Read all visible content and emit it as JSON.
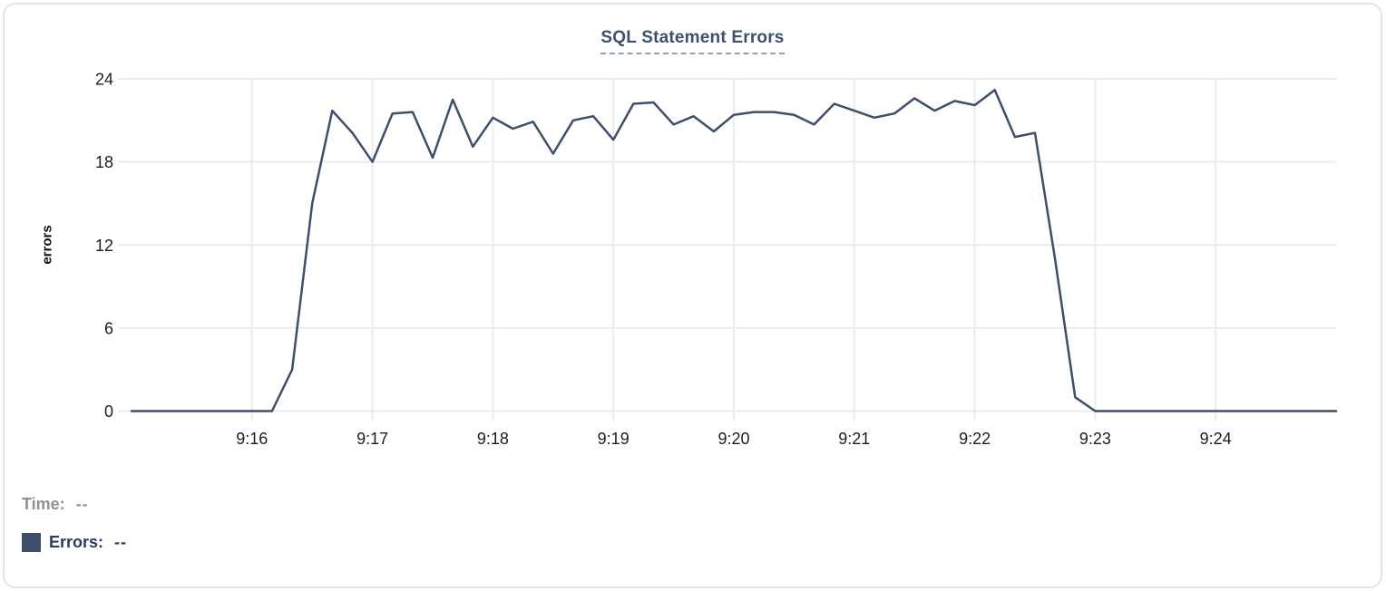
{
  "chart": {
    "title": "SQL Statement Errors",
    "ylabel": "errors"
  },
  "legend": {
    "time_label": "Time:",
    "time_value": "--",
    "errors_label": "Errors:",
    "errors_value": "--"
  },
  "colors": {
    "series": "#3e4e6d",
    "grid": "#ececee",
    "tick_text": "#1d1d1f",
    "title": "#3e5070",
    "title_underline": "#93a0b8",
    "legend_time": "#8d9096",
    "legend_errors": "#2b3c5f",
    "card_border": "#e4e4e7",
    "background": "#ffffff"
  },
  "chart_data": {
    "type": "line",
    "title": "SQL Statement Errors",
    "xlabel": "",
    "ylabel": "errors",
    "ylim": [
      0,
      24
    ],
    "y_ticks": [
      0,
      6,
      12,
      18,
      24
    ],
    "x_ticks": [
      "9:16",
      "9:17",
      "9:18",
      "9:19",
      "9:20",
      "9:21",
      "9:22",
      "9:23",
      "9:24"
    ],
    "x_range": [
      "9:15:00",
      "9:25:00"
    ],
    "sample_interval_seconds": 10,
    "grid": true,
    "legend_position": "bottom-left",
    "series": [
      {
        "name": "Errors",
        "color": "#3e4e6d",
        "x": [
          "9:15:00",
          "9:15:10",
          "9:15:20",
          "9:15:30",
          "9:15:40",
          "9:15:50",
          "9:16:00",
          "9:16:10",
          "9:16:20",
          "9:16:30",
          "9:16:40",
          "9:16:50",
          "9:17:00",
          "9:17:10",
          "9:17:20",
          "9:17:30",
          "9:17:40",
          "9:17:50",
          "9:18:00",
          "9:18:10",
          "9:18:20",
          "9:18:30",
          "9:18:40",
          "9:18:50",
          "9:19:00",
          "9:19:10",
          "9:19:20",
          "9:19:30",
          "9:19:40",
          "9:19:50",
          "9:20:00",
          "9:20:10",
          "9:20:20",
          "9:20:30",
          "9:20:40",
          "9:20:50",
          "9:21:00",
          "9:21:10",
          "9:21:20",
          "9:21:30",
          "9:21:40",
          "9:21:50",
          "9:22:00",
          "9:22:10",
          "9:22:20",
          "9:22:30",
          "9:22:40",
          "9:22:50",
          "9:23:00",
          "9:23:10",
          "9:23:20",
          "9:23:30",
          "9:23:40",
          "9:23:50",
          "9:24:00",
          "9:24:10",
          "9:24:20",
          "9:24:30",
          "9:24:40",
          "9:24:50",
          "9:25:00"
        ],
        "values": [
          0,
          0,
          0,
          0,
          0,
          0,
          0,
          0,
          3,
          15,
          21.7,
          20.1,
          18,
          21.5,
          21.6,
          18.3,
          22.5,
          19.1,
          21.2,
          20.4,
          20.9,
          18.6,
          21,
          21.3,
          19.6,
          22.2,
          22.3,
          20.7,
          21.3,
          20.2,
          21.4,
          21.6,
          21.6,
          21.4,
          20.7,
          22.2,
          21.7,
          21.2,
          21.5,
          22.6,
          21.7,
          22.4,
          22.1,
          23.2,
          19.8,
          20.1,
          11,
          1,
          0,
          0,
          0,
          0,
          0,
          0,
          0,
          0,
          0,
          0,
          0,
          0,
          0
        ]
      }
    ]
  }
}
